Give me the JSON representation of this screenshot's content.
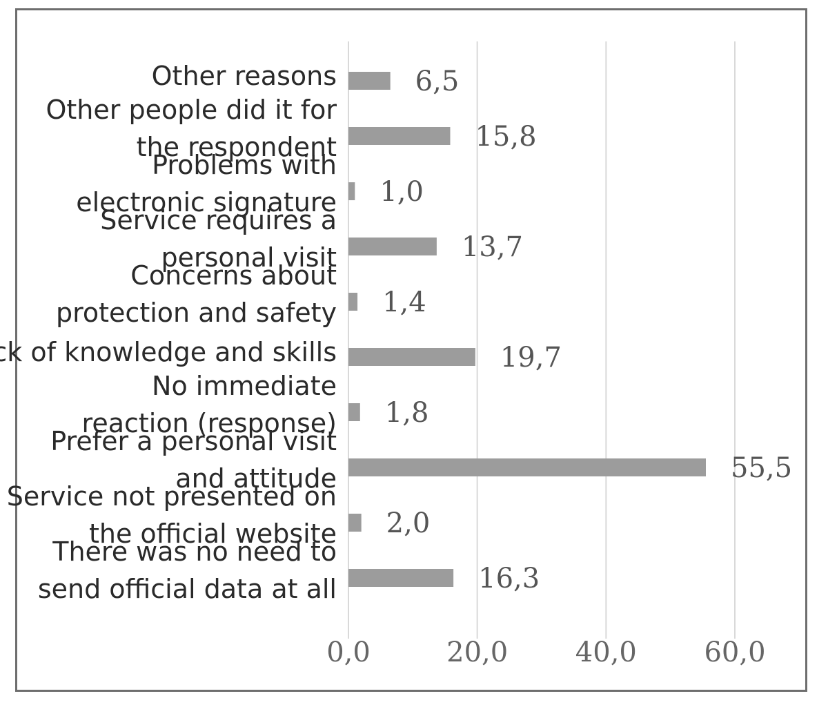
{
  "chart_data": {
    "type": "bar",
    "orientation": "horizontal",
    "title": "",
    "xlabel": "",
    "ylabel": "",
    "xlim": [
      0,
      60
    ],
    "x_ticks": [
      0,
      20,
      40,
      60
    ],
    "x_tick_labels": [
      "0,0",
      "20,0",
      "40,0",
      "60,0"
    ],
    "grid": "vertical",
    "bar_color": "#9c9c9c",
    "categories": [
      [
        "Other reasons"
      ],
      [
        "Other people did it for",
        "the respondent"
      ],
      [
        "Problems with",
        "electronic signature"
      ],
      [
        "Service requires a",
        "personal visit"
      ],
      [
        "Concerns about",
        "protection and safety"
      ],
      [
        "Lack of knowledge and skills"
      ],
      [
        "No immediate",
        "reaction (response)"
      ],
      [
        "Prefer a personal visit",
        "and attitude"
      ],
      [
        "Service not presented on",
        "the official website"
      ],
      [
        "There was no need to",
        "send official data at all"
      ]
    ],
    "values": [
      6.5,
      15.8,
      1.0,
      13.7,
      1.4,
      19.7,
      1.8,
      55.5,
      2.0,
      16.3
    ],
    "value_labels": [
      "6,5",
      "15,8",
      "1,0",
      "13,7",
      "1,4",
      "19,7",
      "1,8",
      "55,5",
      "2,0",
      "16,3"
    ]
  }
}
